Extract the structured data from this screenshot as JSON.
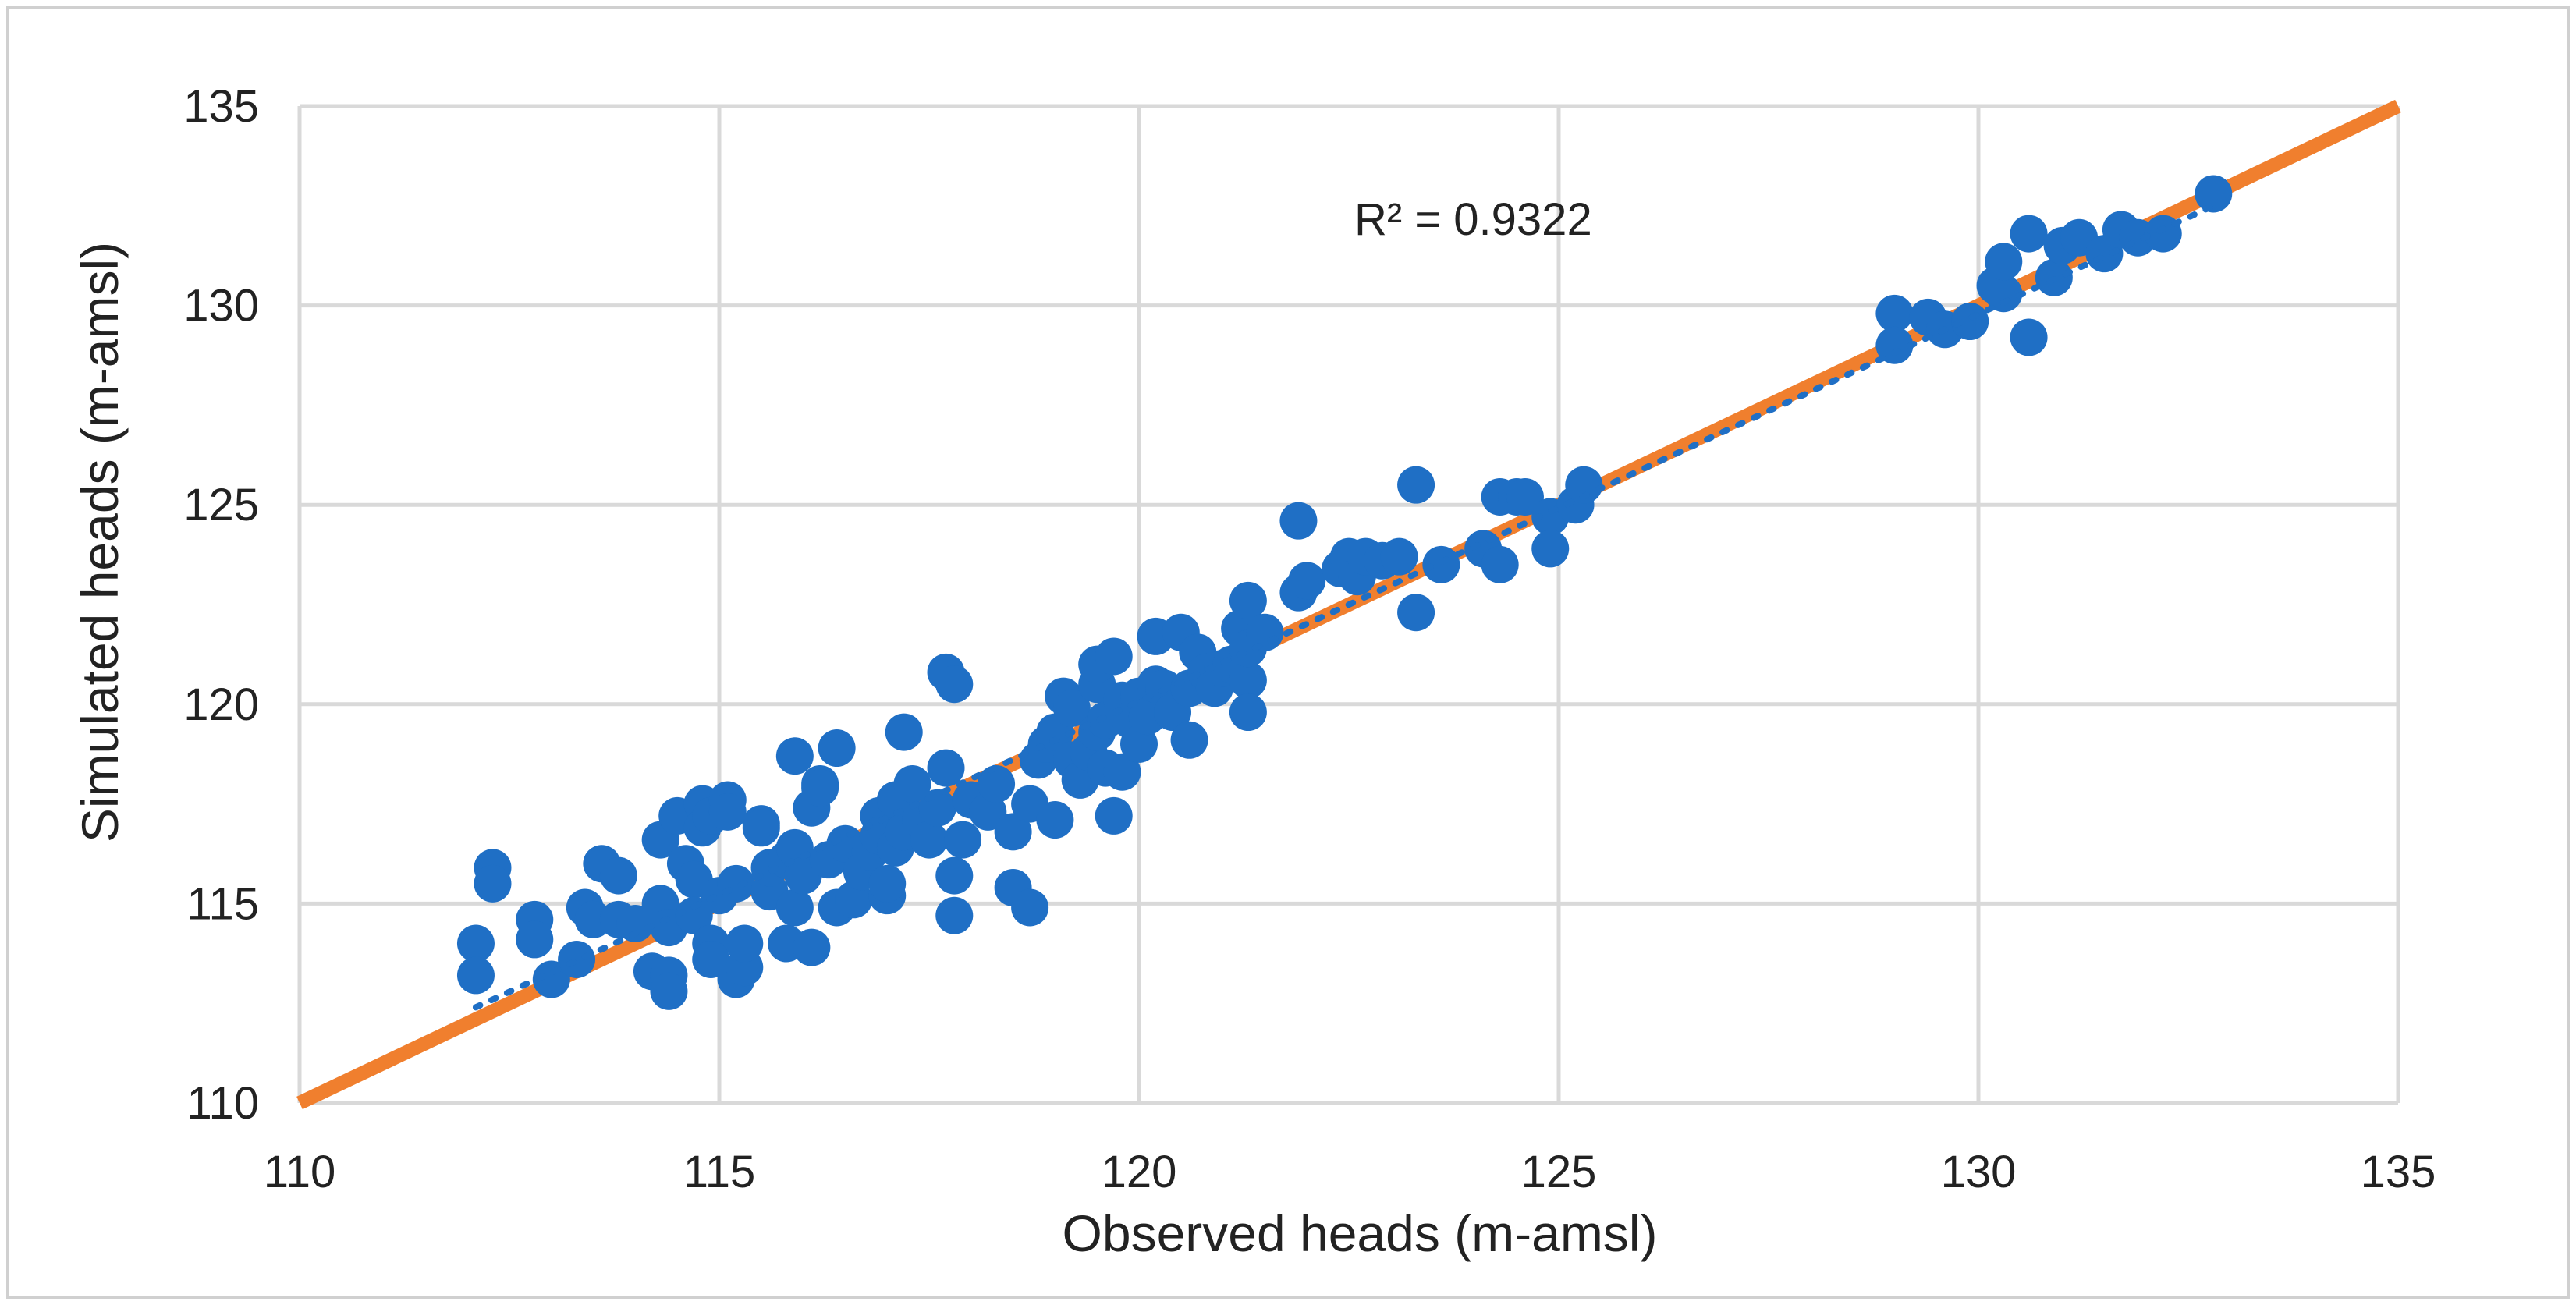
{
  "chart_data": {
    "type": "scatter",
    "title": "",
    "xlabel": "Observed heads (m-amsl)",
    "ylabel": "Simulated heads (m-amsl)",
    "xlim": [
      110,
      135
    ],
    "ylim": [
      110,
      135
    ],
    "xticks": [
      "110",
      "115",
      "120",
      "125",
      "130",
      "135"
    ],
    "yticks": [
      "110",
      "115",
      "120",
      "125",
      "130",
      "135"
    ],
    "grid": true,
    "annotation": "R² = 0.9322",
    "colors": {
      "points": "#1f6fc5",
      "one_to_one": "#f07f2e",
      "trend": "#1f6fc5",
      "grid": "#d9d9d9"
    },
    "lines": [
      {
        "kind": "one-to-one",
        "x": [
          110,
          135
        ],
        "y": [
          110,
          135
        ]
      },
      {
        "kind": "dotted-trendline",
        "x": [
          112.1,
          132.8
        ],
        "y": [
          112.4,
          132.5
        ]
      }
    ],
    "points": [
      [
        112.1,
        114.0
      ],
      [
        112.1,
        113.2
      ],
      [
        112.3,
        115.9
      ],
      [
        112.3,
        115.5
      ],
      [
        112.8,
        114.6
      ],
      [
        112.8,
        114.1
      ],
      [
        113.0,
        113.1
      ],
      [
        113.3,
        113.6
      ],
      [
        113.4,
        114.9
      ],
      [
        113.5,
        114.6
      ],
      [
        113.6,
        116.0
      ],
      [
        113.8,
        115.7
      ],
      [
        113.8,
        114.6
      ],
      [
        114.0,
        114.5
      ],
      [
        114.2,
        113.3
      ],
      [
        114.3,
        115.0
      ],
      [
        114.3,
        116.6
      ],
      [
        114.4,
        114.4
      ],
      [
        114.4,
        113.2
      ],
      [
        114.4,
        112.8
      ],
      [
        114.5,
        117.2
      ],
      [
        114.6,
        116.0
      ],
      [
        114.7,
        115.6
      ],
      [
        114.7,
        114.7
      ],
      [
        114.8,
        117.5
      ],
      [
        114.8,
        116.9
      ],
      [
        114.9,
        117.2
      ],
      [
        114.9,
        114.0
      ],
      [
        114.9,
        113.6
      ],
      [
        115.0,
        115.2
      ],
      [
        115.1,
        117.6
      ],
      [
        115.1,
        117.3
      ],
      [
        115.2,
        115.5
      ],
      [
        115.2,
        113.1
      ],
      [
        115.3,
        113.4
      ],
      [
        115.3,
        114.0
      ],
      [
        115.5,
        117.0
      ],
      [
        115.5,
        116.9
      ],
      [
        115.6,
        115.3
      ],
      [
        115.6,
        115.9
      ],
      [
        115.8,
        114.0
      ],
      [
        115.8,
        116.1
      ],
      [
        115.9,
        118.7
      ],
      [
        115.9,
        114.9
      ],
      [
        115.9,
        116.4
      ],
      [
        116.0,
        115.7
      ],
      [
        116.1,
        117.4
      ],
      [
        116.1,
        113.9
      ],
      [
        116.2,
        118.0
      ],
      [
        116.2,
        117.9
      ],
      [
        116.3,
        116.1
      ],
      [
        116.4,
        118.9
      ],
      [
        116.4,
        114.9
      ],
      [
        116.5,
        116.5
      ],
      [
        116.6,
        115.1
      ],
      [
        116.7,
        115.8
      ],
      [
        116.8,
        116.3
      ],
      [
        116.9,
        117.2
      ],
      [
        116.9,
        116.7
      ],
      [
        117.0,
        115.2
      ],
      [
        117.0,
        115.5
      ],
      [
        117.1,
        117.6
      ],
      [
        117.1,
        116.4
      ],
      [
        117.2,
        119.3
      ],
      [
        117.2,
        116.8
      ],
      [
        117.3,
        118.0
      ],
      [
        117.4,
        117.1
      ],
      [
        117.5,
        116.6
      ],
      [
        117.6,
        117.4
      ],
      [
        117.7,
        118.4
      ],
      [
        117.7,
        120.8
      ],
      [
        117.8,
        120.5
      ],
      [
        117.8,
        115.7
      ],
      [
        117.8,
        114.7
      ],
      [
        117.9,
        116.6
      ],
      [
        118.0,
        117.6
      ],
      [
        118.2,
        117.3
      ],
      [
        118.3,
        118.0
      ],
      [
        118.5,
        116.8
      ],
      [
        118.5,
        115.4
      ],
      [
        118.7,
        117.5
      ],
      [
        118.7,
        114.9
      ],
      [
        118.8,
        118.6
      ],
      [
        118.9,
        119.0
      ],
      [
        119.0,
        117.1
      ],
      [
        119.0,
        119.3
      ],
      [
        119.1,
        120.2
      ],
      [
        119.2,
        118.6
      ],
      [
        119.2,
        119.9
      ],
      [
        119.3,
        118.1
      ],
      [
        119.4,
        118.8
      ],
      [
        119.5,
        120.5
      ],
      [
        119.5,
        119.3
      ],
      [
        119.5,
        121.0
      ],
      [
        119.6,
        118.4
      ],
      [
        119.6,
        119.6
      ],
      [
        119.7,
        121.2
      ],
      [
        119.7,
        117.2
      ],
      [
        119.8,
        120.1
      ],
      [
        119.8,
        118.3
      ],
      [
        119.9,
        119.6
      ],
      [
        120.0,
        119.0
      ],
      [
        120.0,
        120.2
      ],
      [
        120.1,
        119.7
      ],
      [
        120.2,
        120.5
      ],
      [
        120.2,
        121.7
      ],
      [
        120.3,
        120.4
      ],
      [
        120.4,
        119.8
      ],
      [
        120.5,
        121.8
      ],
      [
        120.6,
        120.4
      ],
      [
        120.6,
        119.1
      ],
      [
        120.7,
        121.3
      ],
      [
        120.8,
        120.8
      ],
      [
        120.9,
        120.4
      ],
      [
        121.0,
        120.9
      ],
      [
        121.1,
        121.0
      ],
      [
        121.2,
        121.9
      ],
      [
        121.3,
        120.6
      ],
      [
        121.3,
        119.8
      ],
      [
        121.3,
        122.6
      ],
      [
        121.3,
        121.4
      ],
      [
        121.5,
        121.8
      ],
      [
        121.9,
        124.6
      ],
      [
        121.9,
        122.8
      ],
      [
        122.0,
        123.1
      ],
      [
        122.4,
        123.4
      ],
      [
        122.5,
        123.7
      ],
      [
        122.6,
        123.2
      ],
      [
        122.7,
        123.7
      ],
      [
        122.9,
        123.6
      ],
      [
        123.1,
        123.7
      ],
      [
        123.3,
        125.5
      ],
      [
        123.3,
        122.3
      ],
      [
        123.6,
        123.5
      ],
      [
        124.1,
        123.9
      ],
      [
        124.3,
        125.2
      ],
      [
        124.3,
        123.5
      ],
      [
        124.5,
        125.2
      ],
      [
        124.6,
        125.2
      ],
      [
        124.9,
        124.7
      ],
      [
        124.9,
        123.9
      ],
      [
        125.2,
        125.0
      ],
      [
        125.3,
        125.5
      ],
      [
        129.0,
        129.8
      ],
      [
        129.0,
        129.0
      ],
      [
        129.4,
        129.7
      ],
      [
        129.6,
        129.4
      ],
      [
        129.9,
        129.6
      ],
      [
        130.2,
        130.5
      ],
      [
        130.3,
        130.3
      ],
      [
        130.3,
        131.1
      ],
      [
        130.6,
        131.8
      ],
      [
        130.6,
        129.2
      ],
      [
        130.9,
        130.7
      ],
      [
        131.0,
        131.5
      ],
      [
        131.2,
        131.7
      ],
      [
        131.5,
        131.3
      ],
      [
        131.7,
        131.9
      ],
      [
        131.9,
        131.7
      ],
      [
        132.2,
        131.8
      ],
      [
        132.8,
        132.8
      ]
    ]
  }
}
